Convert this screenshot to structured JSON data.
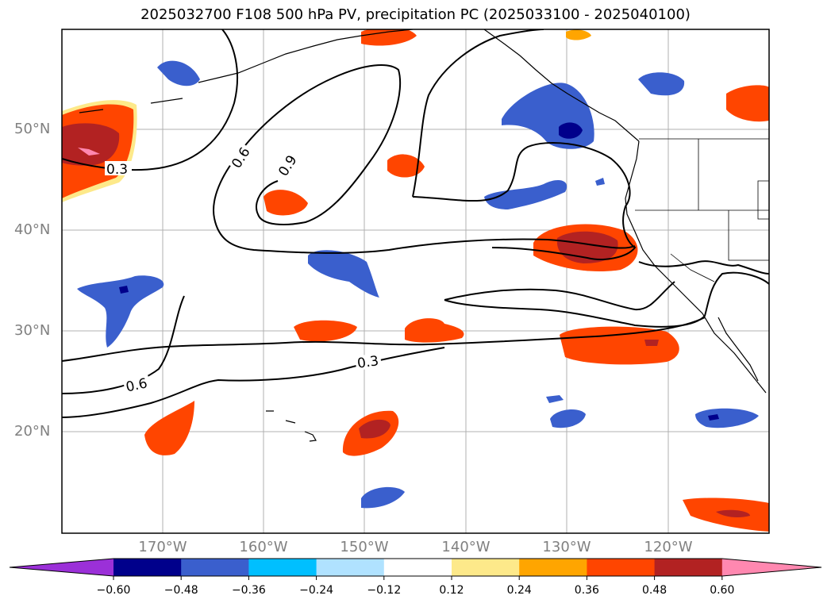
{
  "title": "2025032700 F108 500 hPa PV, precipitation PC (2025033100 - 2025040100)",
  "lat_labels": [
    "50°N",
    "40°N",
    "30°N",
    "20°N"
  ],
  "lon_labels": [
    "170°W",
    "160°W",
    "150°W",
    "140°W",
    "130°W",
    "120°W"
  ],
  "contour_labels": [
    "0.3",
    "0.6",
    "0.9",
    "0.6",
    "0.3"
  ],
  "colorbar": {
    "ticks": [
      "−0.60",
      "−0.48",
      "−0.36",
      "−0.24",
      "−0.12",
      "0.12",
      "0.24",
      "0.36",
      "0.48",
      "0.60"
    ],
    "colors": [
      "#9b30d8",
      "#00008b",
      "#3a5fcd",
      "#00bfff",
      "#b0e2ff",
      "#ffffff",
      "#fde98a",
      "#ffa500",
      "#ff4500",
      "#b22222",
      "#ff88b0"
    ]
  }
}
